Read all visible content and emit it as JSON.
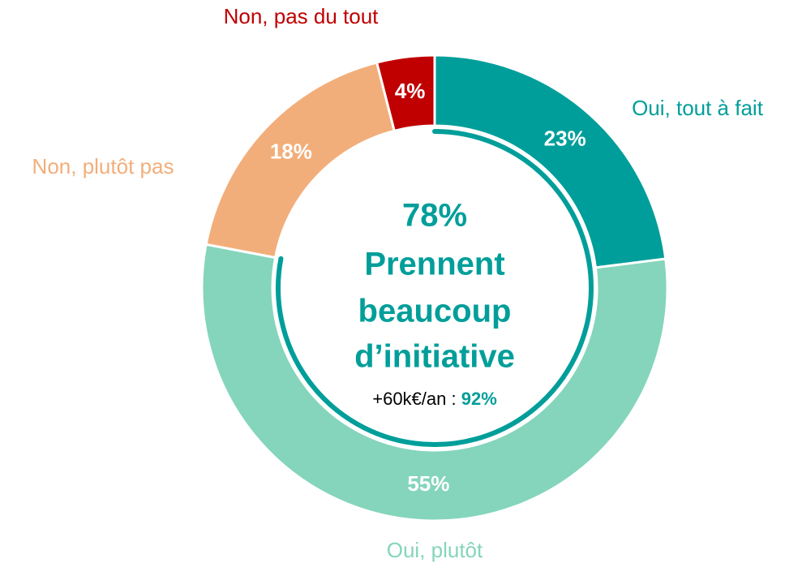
{
  "chart_data": {
    "type": "donut",
    "categories": [
      "Oui, tout à fait",
      "Oui, plutôt",
      "Non, plutôt pas",
      "Non, pas du tout"
    ],
    "values": [
      23,
      55,
      18,
      4
    ],
    "value_labels": [
      "23%",
      "55%",
      "18%",
      "4%"
    ],
    "colors": [
      "#009e9a",
      "#84d5bb",
      "#f2ae7a",
      "#c00000"
    ],
    "center": {
      "value": 78,
      "label": "78%",
      "lines": [
        "Prennent",
        "beaucoup",
        "d’initiative"
      ],
      "note": {
        "text": "+60k€/an : ",
        "value": 92,
        "label": "92%"
      }
    }
  }
}
